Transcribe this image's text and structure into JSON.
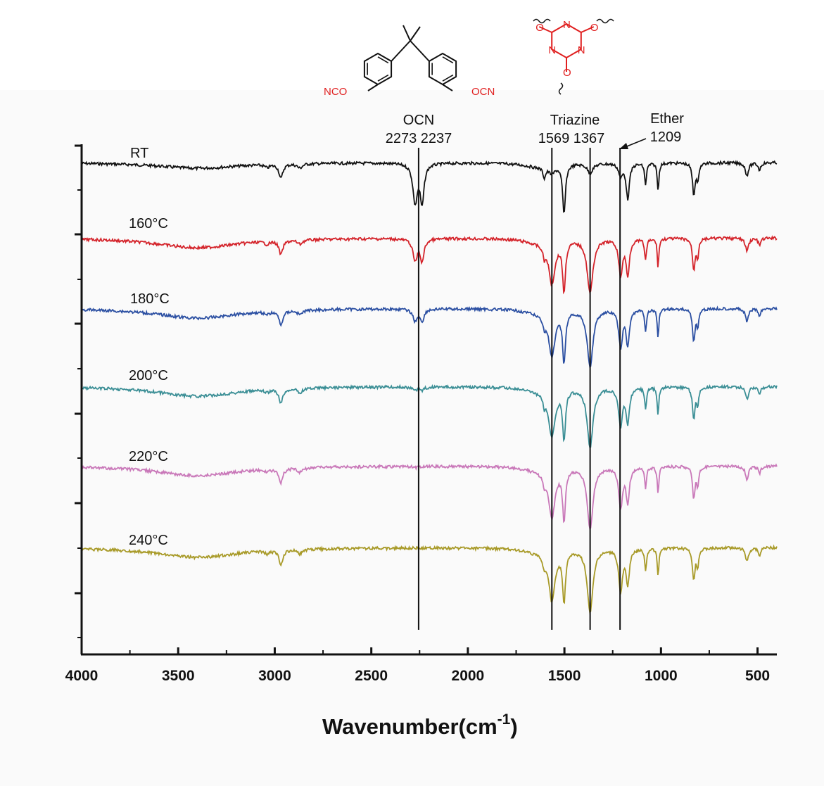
{
  "chart_data": {
    "type": "line",
    "xlabel": "Wavenumber(cm",
    "xlabel_sup": "-1",
    "xlabel_close": ")",
    "xlim": [
      4000,
      400
    ],
    "x_ticks": [
      4000,
      3500,
      3000,
      2500,
      2000,
      1500,
      1000,
      500
    ],
    "ylabel": "",
    "grid": false,
    "legend": "none",
    "series": [
      {
        "name": "RT",
        "color": "#111111",
        "baseline_frac": 0.84,
        "ocn_depth": 1.0,
        "triazine_depth": 0.15,
        "ether_depth": 0.3
      },
      {
        "name": "160°C",
        "color": "#d4232a",
        "baseline_frac": 0.84,
        "ocn_depth": 0.55,
        "triazine_depth": 0.85,
        "ether_depth": 0.85
      },
      {
        "name": "180°C",
        "color": "#2b4fa2",
        "baseline_frac": 0.84,
        "ocn_depth": 0.3,
        "triazine_depth": 0.9,
        "ether_depth": 0.88
      },
      {
        "name": "200°C",
        "color": "#3a8e95",
        "baseline_frac": 0.84,
        "ocn_depth": 0.08,
        "triazine_depth": 0.95,
        "ether_depth": 0.92
      },
      {
        "name": "220°C",
        "color": "#c978b9",
        "baseline_frac": 0.84,
        "ocn_depth": 0.02,
        "triazine_depth": 0.98,
        "ether_depth": 0.95
      },
      {
        "name": "240°C",
        "color": "#a89a28",
        "baseline_frac": 0.84,
        "ocn_depth": 0.0,
        "triazine_depth": 1.0,
        "ether_depth": 1.0
      }
    ],
    "annotations": [
      {
        "group": "OCN",
        "values": [
          "2273",
          "2237"
        ],
        "line_x": 2255
      },
      {
        "group": "Triazine",
        "values": [
          "1569",
          "1367"
        ],
        "line_x": [
          1565,
          1367
        ]
      },
      {
        "group": "Ether",
        "values": [
          "1209"
        ],
        "line_x": 1212
      }
    ]
  },
  "structures": {
    "monomer_left_group": "NCO",
    "monomer_right_group": "OCN",
    "triazine_atoms": [
      "N",
      "N",
      "N",
      "O",
      "O",
      "O"
    ]
  }
}
